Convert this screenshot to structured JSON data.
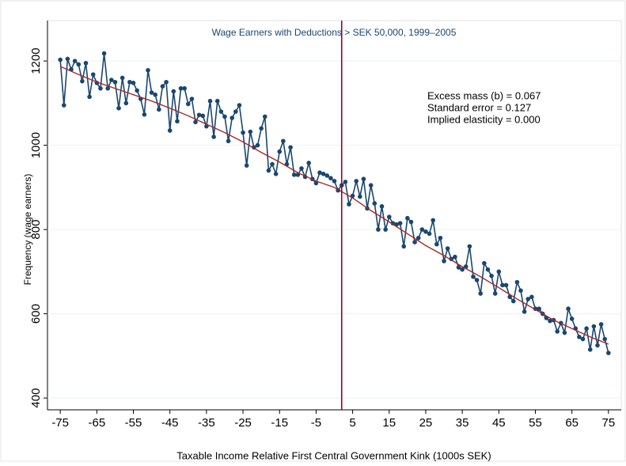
{
  "chart_data": {
    "type": "line",
    "title": "Wage Earners with Deductions > SEK 50,000, 1999–2005",
    "xlabel": "Taxable Income Relative First Central Government Kink (1000s SEK)",
    "ylabel": "Frequency (wage earners)",
    "annotations": [
      "Excess mass (b) = 0.067",
      "Standard error = 0.127",
      "Implied elasticity = 0.000"
    ],
    "xlim": [
      -78.5,
      78.5
    ],
    "ylim": [
      372,
      1296
    ],
    "xticks": [
      -75,
      -65,
      -55,
      -45,
      -35,
      -25,
      -15,
      -5,
      5,
      15,
      25,
      35,
      45,
      55,
      65,
      75
    ],
    "yticks": [
      400,
      600,
      800,
      1000,
      1200
    ],
    "reference_line_x": 2,
    "reference_line_color": "#990033",
    "series": [
      {
        "color": "#1a476f",
        "markers": true,
        "x": [
          -75,
          -74,
          -73,
          -72,
          -71,
          -70,
          -69,
          -68,
          -67,
          -66,
          -65,
          -64,
          -63,
          -62,
          -61,
          -60,
          -59,
          -58,
          -57,
          -56,
          -55,
          -54,
          -53,
          -52,
          -51,
          -50,
          -49,
          -48,
          -47,
          -46,
          -45,
          -44,
          -43,
          -42,
          -41,
          -40,
          -39,
          -38,
          -37,
          -36,
          -35,
          -34,
          -33,
          -32,
          -31,
          -30,
          -29,
          -28,
          -27,
          -26,
          -25,
          -24,
          -23,
          -22,
          -21,
          -20,
          -19,
          -18,
          -17,
          -16,
          -15,
          -14,
          -13,
          -12,
          -11,
          -10,
          -9,
          -8,
          -7,
          -6,
          -5,
          -4,
          -3,
          -2,
          -1,
          0,
          1,
          2,
          3,
          4,
          5,
          6,
          7,
          8,
          9,
          10,
          11,
          12,
          13,
          14,
          15,
          16,
          17,
          18,
          19,
          20,
          21,
          22,
          23,
          24,
          25,
          26,
          27,
          28,
          29,
          30,
          31,
          32,
          33,
          34,
          35,
          36,
          37,
          38,
          39,
          40,
          41,
          42,
          43,
          44,
          45,
          46,
          47,
          48,
          49,
          50,
          51,
          52,
          53,
          54,
          55,
          56,
          57,
          58,
          59,
          60,
          61,
          62,
          63,
          64,
          65,
          66,
          67,
          68,
          69,
          70,
          71,
          72,
          73,
          74,
          75
        ],
        "values": [
          1203,
          1095,
          1205,
          1180,
          1200,
          1192,
          1152,
          1195,
          1115,
          1168,
          1148,
          1135,
          1218,
          1135,
          1155,
          1150,
          1088,
          1160,
          1100,
          1150,
          1148,
          1130,
          1110,
          1073,
          1178,
          1125,
          1120,
          1085,
          1140,
          1150,
          1035,
          1128,
          1057,
          1135,
          1135,
          1098,
          1110,
          1055,
          1072,
          1070,
          1045,
          1105,
          1020,
          1105,
          1080,
          1068,
          1010,
          1065,
          1080,
          1095,
          1030,
          952,
          1032,
          995,
          1000,
          1040,
          1068,
          940,
          955,
          932,
          985,
          1010,
          955,
          995,
          930,
          930,
          945,
          925,
          958,
          920,
          910,
          935,
          932,
          928,
          922,
          915,
          893,
          905,
          913,
          860,
          880,
          915,
          878,
          920,
          850,
          905,
          862,
          800,
          855,
          800,
          830,
          815,
          812,
          815,
          760,
          827,
          818,
          770,
          780,
          800,
          795,
          790,
          822,
          765,
          780,
          725,
          755,
          730,
          735,
          710,
          705,
          712,
          760,
          688,
          680,
          648,
          720,
          705,
          690,
          648,
          700,
          668,
          668,
          640,
          630,
          675,
          655,
          605,
          635,
          640,
          612,
          612,
          600,
          590,
          583,
          585,
          558,
          578,
          555,
          612,
          588,
          565,
          545,
          540,
          565,
          515,
          570,
          525,
          575,
          540,
          507
        ]
      },
      {
        "color": "#a52a2a",
        "markers": false,
        "x": [
          -75,
          -70,
          -65,
          -60,
          -55,
          -50,
          -45,
          -40,
          -35,
          -30,
          -25,
          -20,
          -15,
          -10,
          -5,
          0,
          5,
          10,
          15,
          20,
          25,
          30,
          35,
          40,
          45,
          50,
          55,
          60,
          65,
          70,
          75
        ],
        "values": [
          1187,
          1168,
          1150,
          1135,
          1120,
          1105,
          1088,
          1070,
          1050,
          1030,
          1008,
          983,
          960,
          935,
          915,
          900,
          875,
          845,
          818,
          790,
          762,
          738,
          712,
          688,
          662,
          635,
          610,
          585,
          565,
          545,
          528
        ]
      }
    ]
  }
}
